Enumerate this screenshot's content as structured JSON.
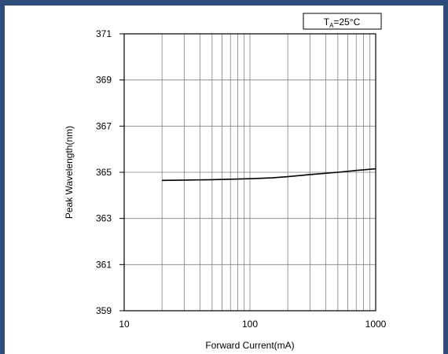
{
  "colors": {
    "frame": "#2e4d7a",
    "grid": "#808080",
    "axis": "#000000",
    "line": "#000000"
  },
  "chart_data": {
    "type": "line",
    "title": "",
    "annotation": {
      "prefix": "T",
      "subscript": "A",
      "suffix": "=25°C"
    },
    "xlabel": "Forward Current(mA)",
    "ylabel": "Peak Wavelength(nm)",
    "x_scale": "log",
    "xlim": [
      10,
      1000
    ],
    "ylim": [
      359,
      371
    ],
    "x_ticks": [
      10,
      100,
      1000
    ],
    "x_tick_labels": [
      "10",
      "100",
      "1000"
    ],
    "y_ticks": [
      359,
      361,
      363,
      365,
      367,
      369,
      371
    ],
    "y_tick_labels": [
      "359",
      "361",
      "363",
      "365",
      "367",
      "369",
      "371"
    ],
    "grid": true,
    "legend": "none",
    "series": [
      {
        "x": [
          20,
          30,
          50,
          70,
          100,
          150,
          200,
          300,
          500,
          700,
          1000
        ],
        "y": [
          364.65,
          364.66,
          364.68,
          364.7,
          364.72,
          364.76,
          364.81,
          364.9,
          365.0,
          365.08,
          365.15
        ]
      }
    ]
  }
}
